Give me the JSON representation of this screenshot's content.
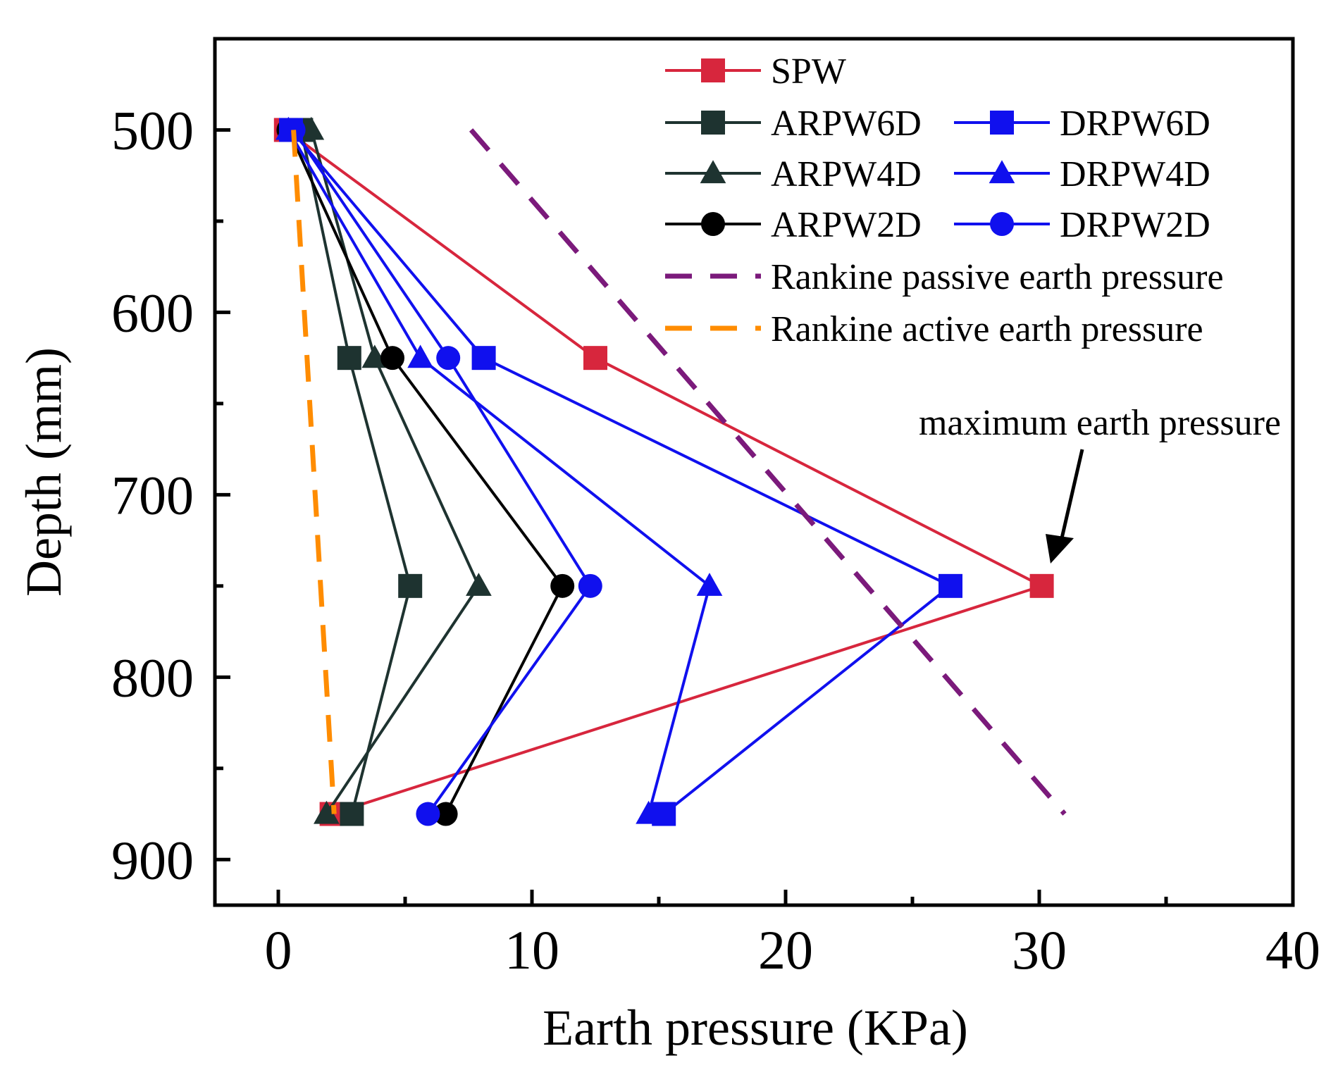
{
  "chart_data": {
    "type": "line",
    "title": "",
    "xlabel": "Earth pressure (KPa)",
    "ylabel": "Depth (mm)",
    "xlim": [
      -2.5,
      40
    ],
    "ylim": [
      450,
      925
    ],
    "y_inverted": true,
    "x_ticks": [
      0,
      10,
      20,
      30,
      40
    ],
    "x_minor_ticks": [
      5,
      15,
      25,
      35
    ],
    "y_ticks": [
      500,
      600,
      700,
      800,
      900
    ],
    "y_minor_ticks": [
      550,
      650,
      750,
      850
    ],
    "legend_position": "top-right",
    "grid": false,
    "series": [
      {
        "name": "SPW",
        "color": "#d7263d",
        "marker": "square",
        "dash": "solid",
        "points": [
          [
            0.3,
            500
          ],
          [
            12.5,
            625
          ],
          [
            30.1,
            750
          ],
          [
            2.1,
            875
          ]
        ]
      },
      {
        "name": "ARPW6D",
        "color": "#1e3330",
        "marker": "square",
        "dash": "solid",
        "points": [
          [
            0.9,
            500
          ],
          [
            2.8,
            625
          ],
          [
            5.2,
            750
          ],
          [
            2.9,
            875
          ]
        ]
      },
      {
        "name": "ARPW4D",
        "color": "#1e3330",
        "marker": "triangle",
        "dash": "solid",
        "points": [
          [
            1.3,
            500
          ],
          [
            3.8,
            625
          ],
          [
            7.9,
            750
          ],
          [
            1.9,
            875
          ]
        ]
      },
      {
        "name": "ARPW2D",
        "color": "#000000",
        "marker": "circle",
        "dash": "solid",
        "points": [
          [
            0.4,
            500
          ],
          [
            4.5,
            625
          ],
          [
            11.2,
            750
          ],
          [
            6.6,
            875
          ]
        ]
      },
      {
        "name": "DRPW6D",
        "color": "#1010ee",
        "marker": "square",
        "dash": "solid",
        "points": [
          [
            0.5,
            500
          ],
          [
            8.1,
            625
          ],
          [
            26.5,
            750
          ],
          [
            15.2,
            875
          ]
        ]
      },
      {
        "name": "DRPW4D",
        "color": "#1010ee",
        "marker": "triangle",
        "dash": "solid",
        "points": [
          [
            0.4,
            500
          ],
          [
            5.6,
            625
          ],
          [
            17.0,
            750
          ],
          [
            14.6,
            875
          ]
        ]
      },
      {
        "name": "DRPW2D",
        "color": "#1010ee",
        "marker": "circle",
        "dash": "solid",
        "points": [
          [
            0.6,
            500
          ],
          [
            6.7,
            625
          ],
          [
            12.3,
            750
          ],
          [
            5.9,
            875
          ]
        ]
      },
      {
        "name": "Rankine passive earth pressure",
        "color": "#7b1a7b",
        "marker": "none",
        "dash": "dashed",
        "points": [
          [
            7.6,
            500
          ],
          [
            31.0,
            875
          ]
        ]
      },
      {
        "name": "Rankine active earth pressure",
        "color": "#ff8c00",
        "marker": "none",
        "dash": "dashed",
        "points": [
          [
            0.6,
            500
          ],
          [
            2.2,
            875
          ]
        ]
      }
    ],
    "annotations": [
      {
        "text": "maximum earth pressure",
        "target": [
          30.1,
          750
        ]
      }
    ]
  }
}
